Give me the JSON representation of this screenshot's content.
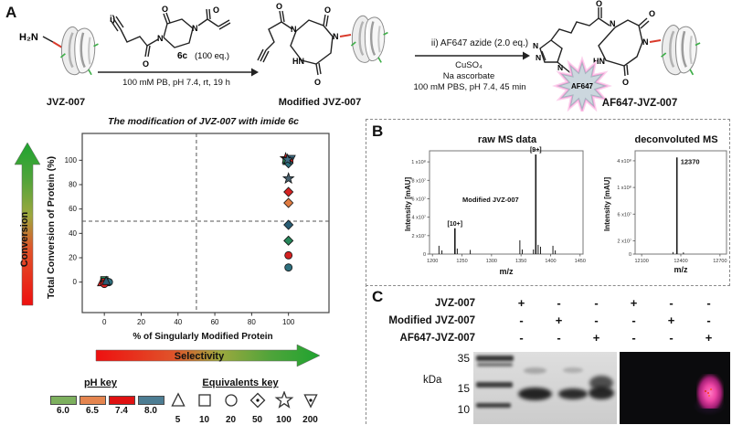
{
  "panelA": {
    "label": "A",
    "scheme": {
      "start_name": "JVZ-007",
      "intermediate_name": "Modified JVZ-007",
      "product_name": "AF647-JVZ-007",
      "step1_label": "i)",
      "reagent_name": "6c",
      "reagent_eq": "(100 eq.)",
      "arrow1_conditions": "100 mM PB, pH 7.4, rt, 19 h",
      "step2_label": "ii) AF647 azide (2.0 eq.)",
      "step2_reagent1": "CuSO₄",
      "step2_reagent2": "Na ascorbate",
      "step2_conditions": "100 mM PBS, pH 7.4, 45 min",
      "dye_label": "AF647",
      "atoms": {
        "o": "O",
        "n": "N",
        "hn": "HN",
        "h2n": "H₂N"
      }
    },
    "arrows": {
      "conversion": "Conversion",
      "selectivity": "Selectivity"
    },
    "legend": {
      "ph_key": {
        "title": "pH key",
        "items": [
          {
            "label": "6.0",
            "color": "#7db05e"
          },
          {
            "label": "6.5",
            "color": "#e5854f"
          },
          {
            "label": "7.4",
            "color": "#e01212"
          },
          {
            "label": "8.0",
            "color": "#4d7d93"
          }
        ]
      },
      "eq_key": {
        "title": "Equivalents key",
        "items": [
          {
            "label": "5",
            "shape": "triangle"
          },
          {
            "label": "10",
            "shape": "square"
          },
          {
            "label": "20",
            "shape": "circle"
          },
          {
            "label": "50",
            "shape": "diamond-dot"
          },
          {
            "label": "100",
            "shape": "star"
          },
          {
            "label": "200",
            "shape": "triangle-down-dot"
          }
        ]
      }
    }
  },
  "panelB": {
    "label": "B"
  },
  "panelC": {
    "label": "C",
    "rows": [
      {
        "label": "JVZ-007",
        "values": [
          "+",
          "-",
          "-",
          "+",
          "-",
          "-"
        ]
      },
      {
        "label": "Modified JVZ-007",
        "values": [
          "-",
          "+",
          "-",
          "-",
          "+",
          "-"
        ]
      },
      {
        "label": "AF647-JVZ-007",
        "values": [
          "-",
          "-",
          "+",
          "-",
          "-",
          "+"
        ]
      }
    ],
    "kda_label": "kDa",
    "markers": [
      "35",
      "15",
      "10"
    ]
  },
  "chart_data": [
    {
      "type": "scatter",
      "title_main": "The modification of JVZ-007 with imide ",
      "title_suffix": "6c",
      "xlabel": "% of Singularly Modified Protein",
      "ylabel": "Total Conversion of Protein (%)",
      "xlim": [
        -12,
        122
      ],
      "ylim": [
        -25,
        122
      ],
      "xticks": [
        0,
        20,
        40,
        60,
        80,
        100
      ],
      "yticks": [
        0,
        20,
        40,
        60,
        80,
        100
      ],
      "ref_x": 50,
      "ref_y": 50,
      "grid": false,
      "points": [
        {
          "x": 98.5,
          "y": 101.5,
          "shape": "star",
          "color": "#cf2020"
        },
        {
          "x": 101.5,
          "y": 101,
          "shape": "triangle-down",
          "color": "#3f6d85"
        },
        {
          "x": 99,
          "y": 99.5,
          "shape": "square",
          "color": "#2e8a55"
        },
        {
          "x": 100.5,
          "y": 99,
          "shape": "circle",
          "color": "#cf2020"
        },
        {
          "x": 100,
          "y": 97.5,
          "shape": "diamond",
          "color": "#2e6f7d"
        },
        {
          "x": 99.5,
          "y": 100.5,
          "shape": "star",
          "color": "#3f6d85"
        },
        {
          "x": 100,
          "y": 85,
          "shape": "star",
          "color": "#46606e"
        },
        {
          "x": 100,
          "y": 74,
          "shape": "diamond",
          "color": "#d42222"
        },
        {
          "x": 100,
          "y": 65,
          "shape": "diamond",
          "color": "#e07c42"
        },
        {
          "x": 100,
          "y": 47,
          "shape": "diamond",
          "color": "#2a5d74"
        },
        {
          "x": 100,
          "y": 34,
          "shape": "diamond",
          "color": "#27865a"
        },
        {
          "x": 100,
          "y": 22,
          "shape": "circle",
          "color": "#d42222"
        },
        {
          "x": 100,
          "y": 12,
          "shape": "circle",
          "color": "#2e6f7d"
        },
        {
          "x": -1.5,
          "y": 0,
          "shape": "triangle",
          "color": "#d42222"
        },
        {
          "x": 0,
          "y": 1.5,
          "shape": "square",
          "color": "#2e8a55"
        },
        {
          "x": 0.5,
          "y": 0,
          "shape": "square",
          "color": "#d42222"
        },
        {
          "x": 2.5,
          "y": 0,
          "shape": "circle",
          "color": "#2e6f7d"
        },
        {
          "x": 0,
          "y": -1.5,
          "shape": "circle",
          "color": "#d42222"
        },
        {
          "x": 1,
          "y": 1,
          "shape": "triangle",
          "color": "#2a5d74"
        }
      ]
    },
    {
      "type": "line",
      "title": "raw MS data",
      "xlabel": "m/z",
      "ylabel": "Intensity [mAU]",
      "annotation": "Modified JVZ-007",
      "xlim": [
        1195,
        1455
      ],
      "ylim": [
        0,
        112000000
      ],
      "xticks": [
        1200,
        1250,
        1300,
        1350,
        1400,
        1450
      ],
      "ytick_values": [
        0,
        20000000,
        40000000,
        60000000,
        80000000,
        100000000
      ],
      "ytick_labels": [
        "0",
        "2 x10⁷",
        "4 x10⁷",
        "6 x10⁷",
        "8 x10⁷",
        "1 x10⁸"
      ],
      "peaks": [
        {
          "mz": 1211,
          "intensity": 9000000
        },
        {
          "mz": 1216,
          "intensity": 4000000
        },
        {
          "mz": 1238,
          "intensity": 28000000,
          "label": "[10+]"
        },
        {
          "mz": 1242,
          "intensity": 6000000
        },
        {
          "mz": 1264,
          "intensity": 4500000
        },
        {
          "mz": 1348,
          "intensity": 15000000
        },
        {
          "mz": 1352,
          "intensity": 5000000
        },
        {
          "mz": 1371,
          "intensity": 5000000
        },
        {
          "mz": 1375,
          "intensity": 108000000,
          "label": "[9+]"
        },
        {
          "mz": 1379,
          "intensity": 10000000
        },
        {
          "mz": 1383,
          "intensity": 8000000
        },
        {
          "mz": 1404,
          "intensity": 9000000
        },
        {
          "mz": 1408,
          "intensity": 4000000
        }
      ]
    },
    {
      "type": "line",
      "title": "deconvoluted MS",
      "xlabel": "m/z",
      "ylabel": "Intensity [mAU]",
      "xlim": [
        12050,
        12750
      ],
      "ylim": [
        0,
        155000000
      ],
      "xticks": [
        12100,
        12400,
        12700
      ],
      "ytick_values": [
        0,
        20000000,
        60000000,
        100000000,
        140000000
      ],
      "ytick_labels": [
        "0",
        "2 x10⁷",
        "6 x10⁷",
        "1 x10⁸",
        "1.4 x10⁸"
      ],
      "peaks": [
        {
          "mz": 12340,
          "intensity": 3000000
        },
        {
          "mz": 12370,
          "intensity": 145000000,
          "label": "12370"
        },
        {
          "mz": 12420,
          "intensity": 2500000
        }
      ]
    }
  ]
}
